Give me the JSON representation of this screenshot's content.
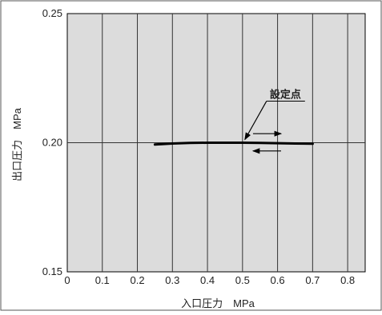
{
  "chart_data": {
    "type": "line",
    "title": "",
    "xlabel": "入口圧力　MPa",
    "ylabel": "出口圧力　MPa",
    "xlim": [
      0,
      0.85
    ],
    "ylim": [
      0.15,
      0.25
    ],
    "x_ticks": [
      "0",
      "0.1",
      "0.2",
      "0.3",
      "0.4",
      "0.5",
      "0.6",
      "0.7",
      "0.8"
    ],
    "y_ticks": [
      "0.25",
      "0.20",
      "0.15"
    ],
    "grid": "vertical lines at 0.1 steps, horizontal line at 0.20",
    "series": [
      {
        "x": [
          0.25,
          0.3,
          0.35,
          0.4,
          0.45,
          0.5,
          0.55,
          0.6,
          0.65,
          0.7
        ],
        "y": [
          0.1993,
          0.1997,
          0.1999,
          0.2,
          0.2,
          0.2,
          0.1999,
          0.1998,
          0.1997,
          0.1996
        ]
      }
    ],
    "annotations": [
      {
        "text": "設定点",
        "x": 0.5,
        "y": 0.2
      }
    ],
    "colors": {
      "plot_background": "#dcdcdc",
      "grid": "#333333",
      "curve": "#000000",
      "frame": "#000000"
    }
  }
}
